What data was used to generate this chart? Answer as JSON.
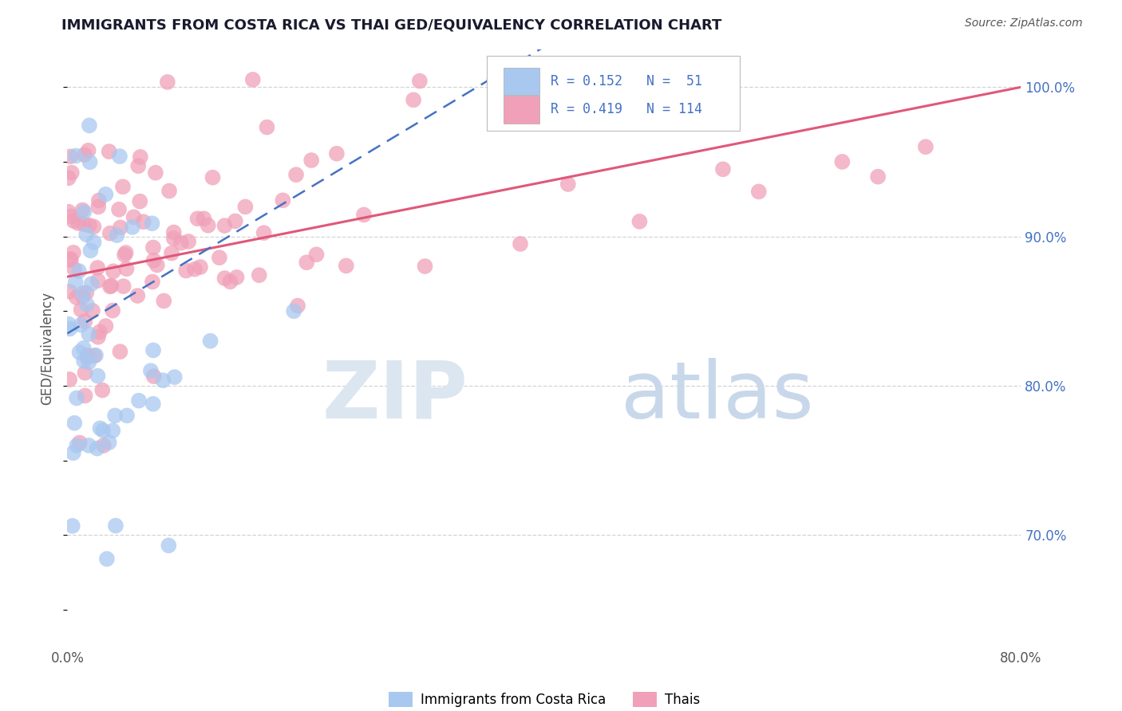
{
  "title": "IMMIGRANTS FROM COSTA RICA VS THAI GED/EQUIVALENCY CORRELATION CHART",
  "source_text": "Source: ZipAtlas.com",
  "ylabel": "GED/Equivalency",
  "xlim": [
    0.0,
    0.8
  ],
  "ylim": [
    0.625,
    1.025
  ],
  "yticks_right": [
    0.7,
    0.8,
    0.9,
    1.0
  ],
  "yticklabels_right": [
    "70.0%",
    "80.0%",
    "90.0%",
    "100.0%"
  ],
  "legend_line1": "R = 0.152   N =  51",
  "legend_line2": "R = 0.419   N = 114",
  "blue_color": "#a8c8f0",
  "pink_color": "#f0a0b8",
  "blue_line_color": "#4472c4",
  "pink_line_color": "#e05878",
  "blue_r": 0.152,
  "pink_r": 0.419,
  "watermark_zip_color": "#dce6f0",
  "watermark_atlas_color": "#c8d8ea",
  "grid_color": "#d0d0d0",
  "title_color": "#1a1a2e",
  "source_color": "#555555",
  "tick_color": "#4472c4",
  "ylabel_color": "#555555"
}
